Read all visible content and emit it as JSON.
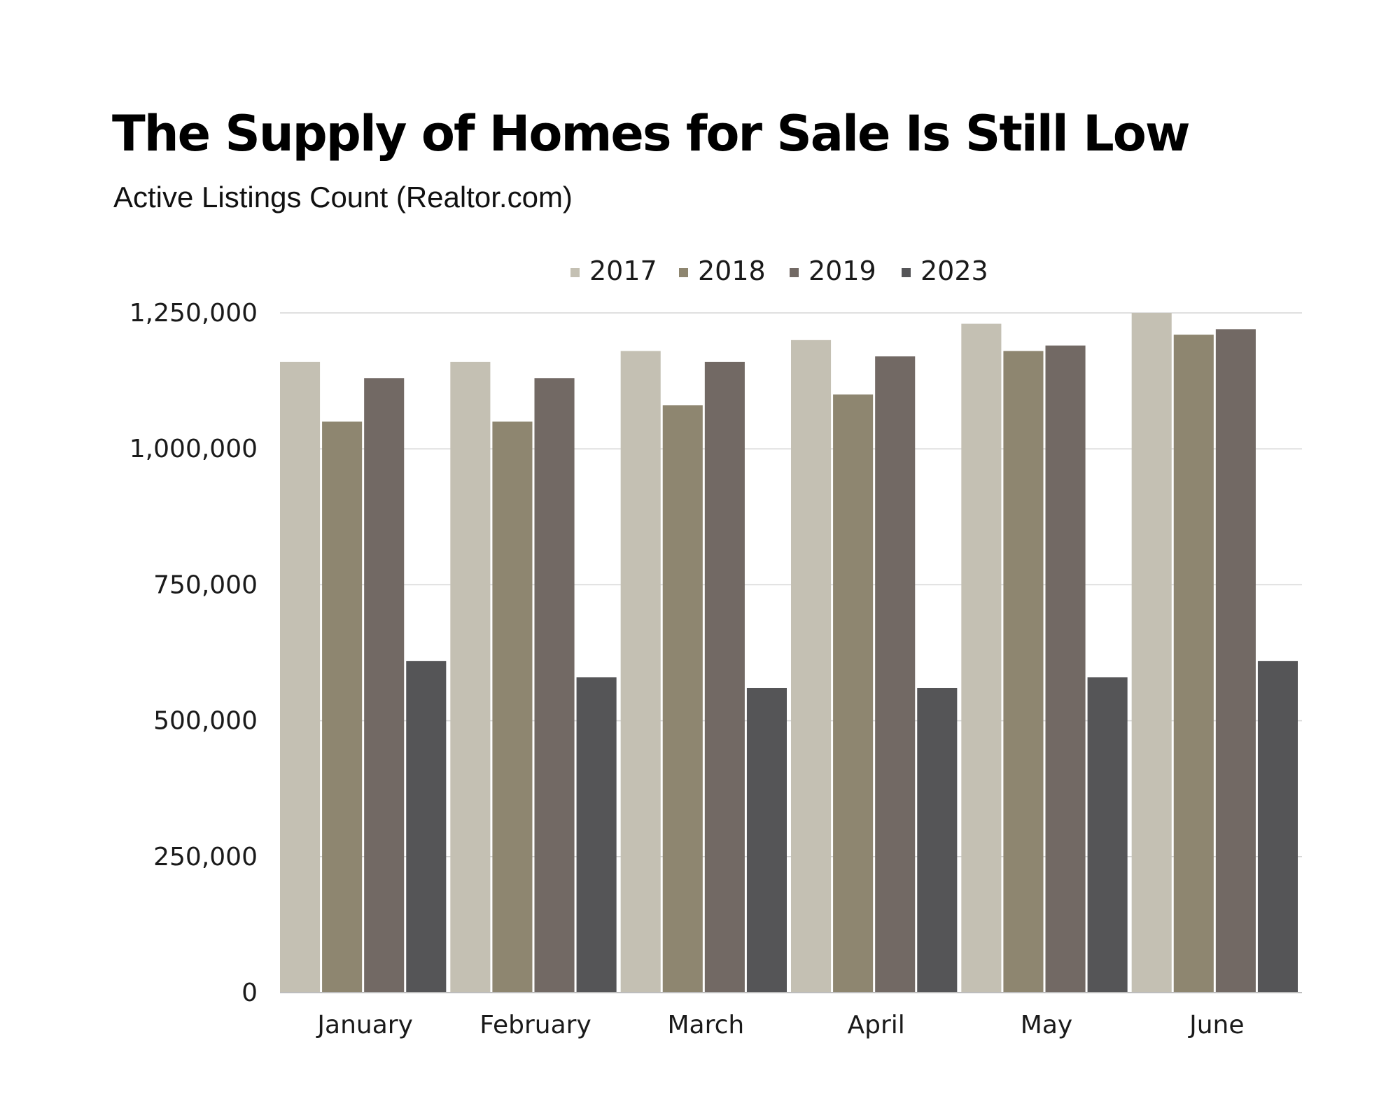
{
  "title": "The Supply of Homes for Sale Is Still Low",
  "subtitle": "Active Listings Count (Realtor.com)",
  "chart_data": {
    "type": "bar",
    "categories": [
      "January",
      "February",
      "March",
      "April",
      "May",
      "June"
    ],
    "series": [
      {
        "name": "2017",
        "color": "#c4c0b3",
        "values": [
          1160000,
          1160000,
          1180000,
          1200000,
          1230000,
          1250000
        ]
      },
      {
        "name": "2018",
        "color": "#8e8670",
        "values": [
          1050000,
          1050000,
          1080000,
          1100000,
          1180000,
          1210000
        ]
      },
      {
        "name": "2019",
        "color": "#726964",
        "values": [
          1130000,
          1130000,
          1160000,
          1170000,
          1190000,
          1220000
        ]
      },
      {
        "name": "2023",
        "color": "#555557",
        "values": [
          610000,
          580000,
          560000,
          560000,
          580000,
          610000
        ]
      }
    ],
    "yticks": [
      0,
      250000,
      500000,
      750000,
      1000000,
      1250000
    ],
    "ytick_labels": [
      "0",
      "250,000",
      "500,000",
      "750,000",
      "1,000,000",
      "1,250,000"
    ],
    "ylim": [
      0,
      1250000
    ],
    "grid": true,
    "legend_position": "top-center",
    "xlabel": "",
    "ylabel": ""
  }
}
